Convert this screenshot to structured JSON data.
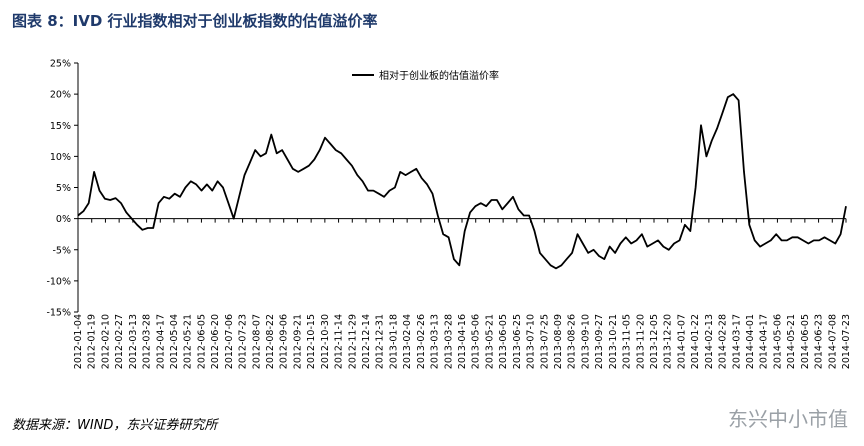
{
  "header": {
    "figure_title": "图表 8：IVD 行业指数相对于创业板指数的估值溢价率"
  },
  "footer": {
    "source": "数据来源：WIND，东兴证券研究所",
    "brand": "东兴中小市值"
  },
  "colors": {
    "title": "#1f3a6b",
    "line": "#000000",
    "axis": "#000000",
    "brand": "#9aa0a6"
  },
  "chart_data": {
    "type": "line",
    "title": "",
    "xlabel": "",
    "ylabel": "",
    "ylim": [
      -15,
      25
    ],
    "yticks": [
      25,
      20,
      15,
      10,
      5,
      0,
      -5,
      -10,
      -15
    ],
    "ytick_labels": [
      "25%",
      "20%",
      "15%",
      "10%",
      "5%",
      "0%",
      "-5%",
      "-10%",
      "-15%"
    ],
    "grid": false,
    "legend": {
      "position": "top-center",
      "entries": [
        "相对于创业板的估值溢价率"
      ]
    },
    "x_labels": [
      "2012-01-04",
      "2012-01-19",
      "2012-02-10",
      "2012-02-27",
      "2012-03-13",
      "2012-03-28",
      "2012-04-17",
      "2012-05-04",
      "2012-05-21",
      "2012-06-05",
      "2012-06-20",
      "2012-07-06",
      "2012-07-23",
      "2012-08-07",
      "2012-08-22",
      "2012-09-06",
      "2012-09-21",
      "2012-10-15",
      "2012-10-30",
      "2012-11-14",
      "2012-11-29",
      "2012-12-14",
      "2012-12-31",
      "2013-01-18",
      "2013-02-04",
      "2013-02-26",
      "2013-03-13",
      "2013-03-28",
      "2013-04-16",
      "2013-05-06",
      "2013-05-21",
      "2013-06-05",
      "2013-06-25",
      "2013-07-10",
      "2013-07-25",
      "2013-08-09",
      "2013-08-26",
      "2013-09-10",
      "2013-09-27",
      "2013-10-21",
      "2013-11-05",
      "2013-11-20",
      "2013-12-05",
      "2013-12-20",
      "2014-01-07",
      "2014-01-22",
      "2014-02-13",
      "2014-02-28",
      "2014-03-17",
      "2014-04-01",
      "2014-04-17",
      "2014-05-06",
      "2014-05-21",
      "2014-06-05",
      "2014-06-23",
      "2014-07-08",
      "2014-07-23"
    ],
    "series": [
      {
        "name": "相对于创业板的估值溢价率",
        "values": [
          0.5,
          1.2,
          2.5,
          7.5,
          4.5,
          3.2,
          3.0,
          3.3,
          2.5,
          1.0,
          0.0,
          -1.0,
          -1.8,
          -1.5,
          -1.5,
          2.5,
          3.5,
          3.2,
          4.0,
          3.5,
          5.0,
          6.0,
          5.5,
          4.5,
          5.5,
          4.5,
          6.0,
          5.0,
          2.5,
          0.0,
          3.5,
          7.0,
          9.0,
          11.0,
          10.0,
          10.5,
          13.5,
          10.5,
          11.0,
          9.5,
          8.0,
          7.5,
          8.0,
          8.5,
          9.5,
          11.0,
          13.0,
          12.0,
          11.0,
          10.5,
          9.5,
          8.5,
          7.0,
          6.0,
          4.5,
          4.5,
          4.0,
          3.5,
          4.5,
          5.0,
          7.5,
          7.0,
          7.5,
          8.0,
          6.5,
          5.5,
          4.0,
          0.5,
          -2.5,
          -3.0,
          -6.5,
          -7.5,
          -2.0,
          1.0,
          2.0,
          2.5,
          2.0,
          3.0,
          3.0,
          1.5,
          2.5,
          3.5,
          1.5,
          0.5,
          0.5,
          -2.0,
          -5.5,
          -6.5,
          -7.5,
          -8.0,
          -7.5,
          -6.5,
          -5.5,
          -2.5,
          -4.0,
          -5.5,
          -5.0,
          -6.0,
          -6.5,
          -4.5,
          -5.5,
          -4.0,
          -3.0,
          -4.0,
          -3.5,
          -2.5,
          -4.5,
          -4.0,
          -3.5,
          -4.5,
          -5.0,
          -4.0,
          -3.5,
          -1.0,
          -2.0,
          5.0,
          15.0,
          10.0,
          12.5,
          14.5,
          17.0,
          19.5,
          20.0,
          19.0,
          7.5,
          -1.0,
          -3.5,
          -4.5,
          -4.0,
          -3.5,
          -2.5,
          -3.5,
          -3.5,
          -3.0,
          -3.0,
          -3.5,
          -4.0,
          -3.5,
          -3.5,
          -3.0,
          -3.5,
          -4.0,
          -2.5,
          2.0
        ]
      }
    ]
  }
}
